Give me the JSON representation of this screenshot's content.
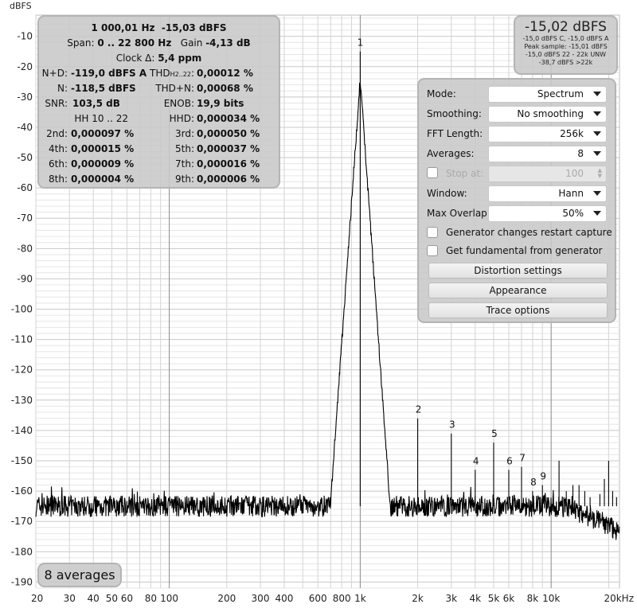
{
  "axis": {
    "unit": "dBFS",
    "y_ticks": [
      "-10",
      "-20",
      "-30",
      "-40",
      "-50",
      "-60",
      "-70",
      "-80",
      "-90",
      "-100",
      "-110",
      "-120",
      "-130",
      "-140",
      "-150",
      "-160",
      "-170",
      "-180",
      "-190"
    ],
    "x_ticks": [
      "20",
      "30",
      "40",
      "50",
      "60",
      "80",
      "100",
      "200",
      "300",
      "400",
      "600",
      "800",
      "1k",
      "2k",
      "3k",
      "4k",
      "5k",
      "6k",
      "8k",
      "10k",
      "20kHz"
    ]
  },
  "stats": {
    "freq": "1 000,01 Hz",
    "level": "-15,03 dBFS",
    "span_label": "Span:",
    "span": "0 .. 22 800 Hz",
    "gain_label": "Gain",
    "gain": "-4,13 dB",
    "clock_label": "Clock Δ:",
    "clock": "5,4 ppm",
    "nd_label": "N+D:",
    "nd": "-119,0 dBFS A",
    "thd_label": "THD",
    "thd_sub": "H2..22",
    "thd_colon": ":",
    "thd": "0,00012 %",
    "n_label": "N:",
    "n": "-118,5 dBFS",
    "thdn_label": "THD+N:",
    "thdn": "0,00068 %",
    "snr_label": "SNR:",
    "snr": "103,5 dB",
    "enob_label": "ENOB:",
    "enob": "19,9 bits",
    "hh_label": "HH 10 .. 22",
    "hhd_label": "HHD:",
    "hhd": "0,000034 %",
    "h2_label": "2nd:",
    "h2": "0,000097 %",
    "h3_label": "3rd:",
    "h3": "0,000050 %",
    "h4_label": "4th:",
    "h4": "0,000015 %",
    "h5_label": "5th:",
    "h5": "0,000037 %",
    "h6_label": "6th:",
    "h6": "0,000009 %",
    "h7_label": "7th:",
    "h7": "0,000016 %",
    "h8_label": "8th:",
    "h8": "0,000004 %",
    "h9_label": "9th:",
    "h9": "0,000006 %"
  },
  "level_box": {
    "main": "-15,02 dBFS",
    "line1": "-15,0 dBFS C, -15,0 dBFS A",
    "line2": "Peak sample: -15,01 dBFS",
    "line3": "-15,0 dBFS 22 - 22k UNW",
    "line4": "-38,7 dBFS >22k"
  },
  "settings": {
    "mode_label": "Mode:",
    "mode": "Spectrum",
    "smoothing_label": "Smoothing:",
    "smoothing": "No smoothing",
    "fft_label": "FFT Length:",
    "fft": "256k",
    "averages_label": "Averages:",
    "averages": "8",
    "stop_label": "Stop at:",
    "stop": "100",
    "window_label": "Window:",
    "window": "Hann",
    "overlap_label": "Max Overlap:",
    "overlap": "50%",
    "gen_restart": "Generator changes restart capture",
    "gen_fund": "Get fundamental from generator",
    "btn_distortion": "Distortion settings",
    "btn_appearance": "Appearance",
    "btn_trace": "Trace options"
  },
  "avg_badge": "8 averages",
  "harmonic_labels": [
    "1",
    "2",
    "3",
    "4",
    "5",
    "6",
    "7",
    "8",
    "9"
  ],
  "colors": {
    "trace": "#000000",
    "grid": "#d8d8d8",
    "grid_major": "#a0a0a0",
    "panel": "#c8c8c8"
  },
  "chart_data": {
    "type": "line",
    "xscale": "log",
    "xlim": [
      20,
      22800
    ],
    "ylim": [
      -192,
      -3
    ],
    "ylabel": "dBFS",
    "noise_floor_dbfs": -165,
    "fundamental": {
      "x": 1000,
      "y": -15
    },
    "harmonics": [
      {
        "label": "2",
        "x": 2000,
        "y": -136
      },
      {
        "label": "3",
        "x": 3000,
        "y": -141
      },
      {
        "label": "4",
        "x": 4000,
        "y": -153
      },
      {
        "label": "5",
        "x": 5000,
        "y": -144
      },
      {
        "label": "6",
        "x": 6000,
        "y": -153
      },
      {
        "label": "7",
        "x": 7000,
        "y": -152
      },
      {
        "label": "8",
        "x": 8000,
        "y": -160
      },
      {
        "label": "9",
        "x": 9000,
        "y": -158
      }
    ]
  }
}
